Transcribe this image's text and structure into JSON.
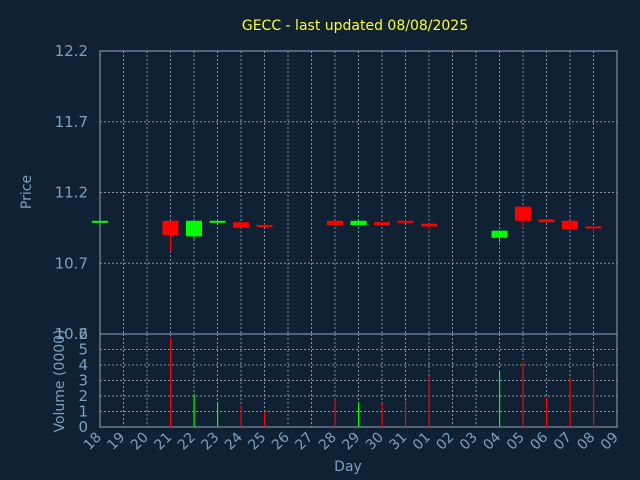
{
  "chart_data": {
    "type": "candlestick",
    "title": "GECC - last updated 08/08/2025",
    "xlabel": "Day",
    "price_panel": {
      "ylabel": "Price",
      "ylim": [
        10.2,
        12.2
      ],
      "ticks": [
        "12.2",
        "11.7",
        "11.2",
        "10.7",
        "10.2"
      ]
    },
    "volume_panel": {
      "ylabel": "Volume (0000)",
      "ylim": [
        0,
        6
      ],
      "ticks": [
        "6",
        "5",
        "4",
        "3",
        "2",
        "1",
        "0"
      ]
    },
    "x_ticks": [
      "18",
      "19",
      "20",
      "21",
      "22",
      "23",
      "24",
      "25",
      "26",
      "27",
      "28",
      "29",
      "30",
      "31",
      "01",
      "02",
      "03",
      "04",
      "05",
      "06",
      "07",
      "08",
      "09"
    ],
    "candles": [
      {
        "day": "18",
        "open": 11.0,
        "close": 11.0,
        "high": 11.0,
        "low": 11.0,
        "volume": 0.0
      },
      {
        "day": "21",
        "open": 11.0,
        "close": 10.9,
        "high": 11.0,
        "low": 10.78,
        "volume": 5.8
      },
      {
        "day": "22",
        "open": 10.89,
        "close": 11.0,
        "high": 11.0,
        "low": 10.87,
        "volume": 2.1
      },
      {
        "day": "23",
        "open": 10.99,
        "close": 11.0,
        "high": 11.01,
        "low": 10.99,
        "volume": 1.6
      },
      {
        "day": "24",
        "open": 10.99,
        "close": 10.95,
        "high": 10.99,
        "low": 10.95,
        "volume": 1.4
      },
      {
        "day": "25",
        "open": 10.97,
        "close": 10.96,
        "high": 10.98,
        "low": 10.96,
        "volume": 1.0
      },
      {
        "day": "28",
        "open": 11.0,
        "close": 10.97,
        "high": 11.0,
        "low": 10.97,
        "volume": 1.8
      },
      {
        "day": "29",
        "open": 10.97,
        "close": 11.0,
        "high": 11.01,
        "low": 10.97,
        "volume": 1.6
      },
      {
        "day": "30",
        "open": 10.99,
        "close": 10.97,
        "high": 10.99,
        "low": 10.97,
        "volume": 1.5
      },
      {
        "day": "31",
        "open": 11.0,
        "close": 10.99,
        "high": 11.01,
        "low": 10.99,
        "volume": 1.7
      },
      {
        "day": "01",
        "open": 10.98,
        "close": 10.96,
        "high": 10.98,
        "low": 10.94,
        "volume": 3.3
      },
      {
        "day": "04",
        "open": 10.88,
        "close": 10.93,
        "high": 10.93,
        "low": 10.85,
        "volume": 3.6
      },
      {
        "day": "05",
        "open": 11.1,
        "close": 11.0,
        "high": 11.1,
        "low": 10.95,
        "volume": 4.2
      },
      {
        "day": "06",
        "open": 11.01,
        "close": 10.99,
        "high": 11.01,
        "low": 10.99,
        "volume": 1.9
      },
      {
        "day": "07",
        "open": 11.0,
        "close": 10.94,
        "high": 11.0,
        "low": 10.94,
        "volume": 3.2
      },
      {
        "day": "08",
        "open": 10.96,
        "close": 10.95,
        "high": 10.96,
        "low": 10.91,
        "volume": 3.6
      }
    ],
    "colors": {
      "background": "#0f2133",
      "up": "#00ff00",
      "down": "#ff0000",
      "title": "#ffff33",
      "axis_text": "#7f9fbf",
      "grid": "#8fa8c0"
    },
    "grid": true
  }
}
